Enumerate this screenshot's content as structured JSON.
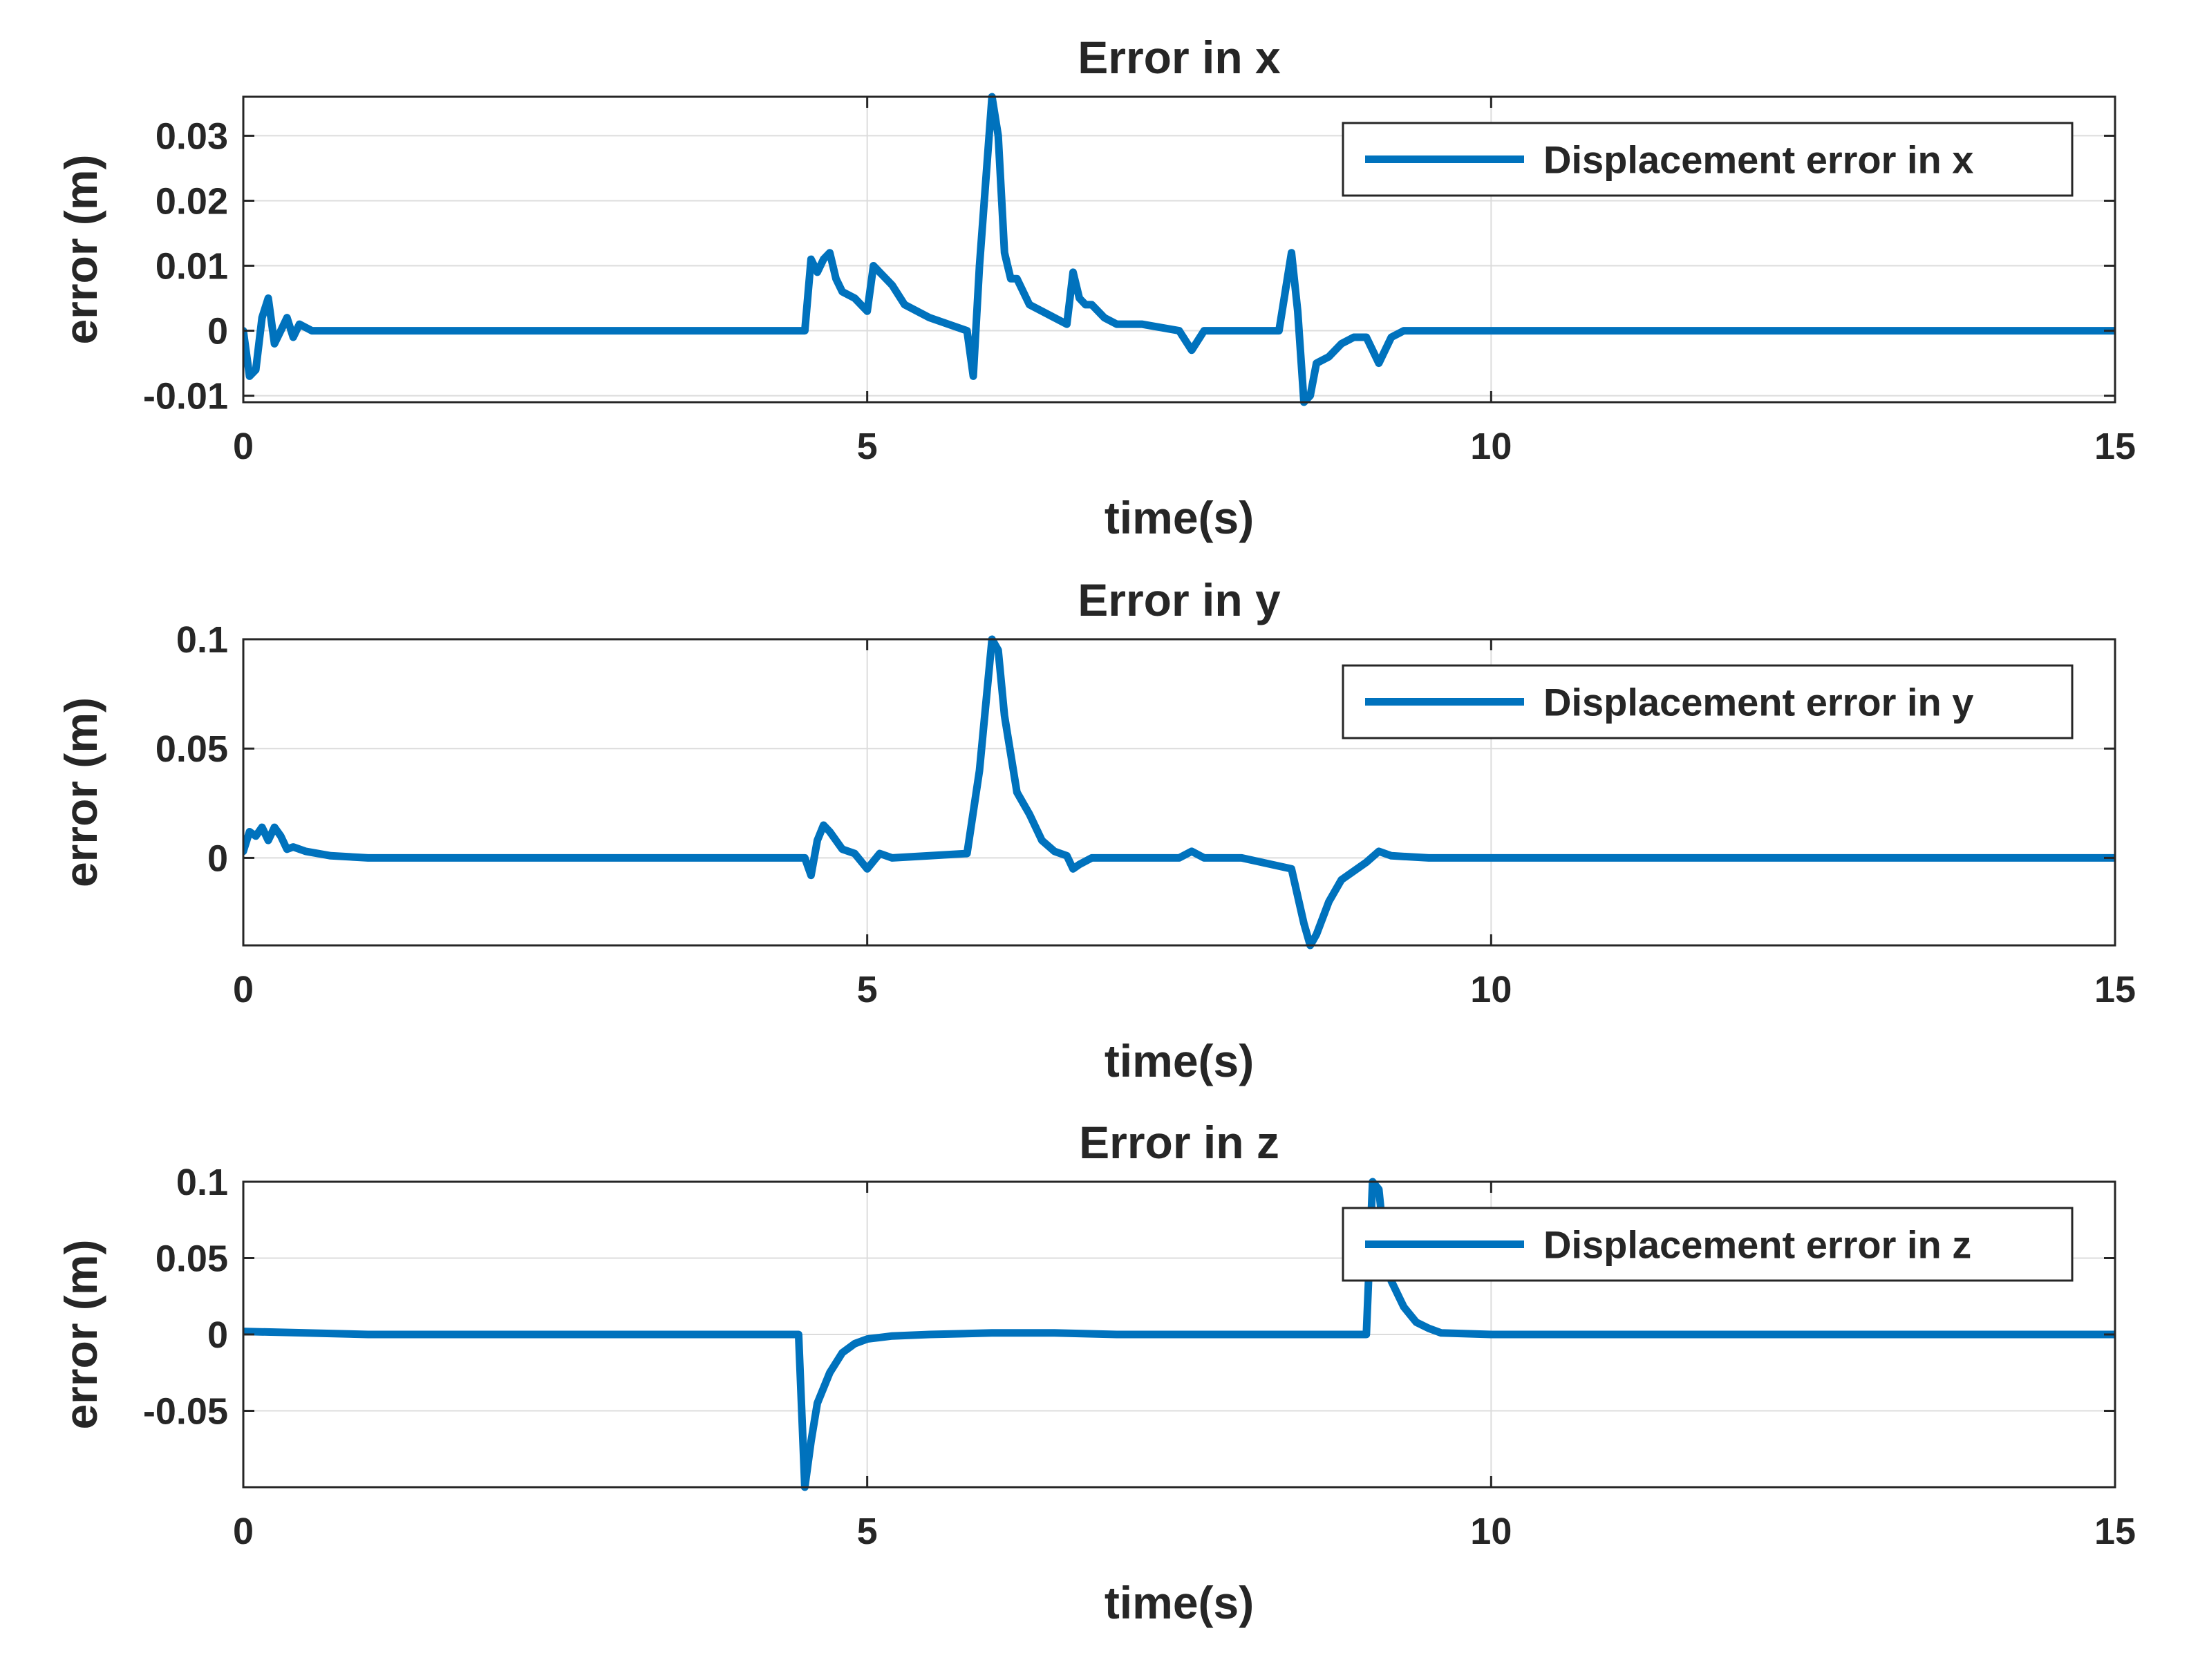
{
  "chart_data": [
    {
      "type": "line",
      "title": "Error in x",
      "xlabel": "time(s)",
      "ylabel": "error (m)",
      "xlim": [
        0,
        15
      ],
      "ylim": [
        -0.011,
        0.036
      ],
      "xticks": [
        0,
        5,
        10,
        15
      ],
      "xtick_labels": [
        "0",
        "5",
        "10",
        "15"
      ],
      "yticks": [
        -0.01,
        0,
        0.01,
        0.02,
        0.03
      ],
      "ytick_labels": [
        "-0.01",
        "0",
        "0.01",
        "0.02",
        "0.03"
      ],
      "grid": true,
      "legend_position": "top-right",
      "series": [
        {
          "name": "Displacement error in x",
          "color": "#0072BD",
          "x": [
            0,
            0.05,
            0.1,
            0.15,
            0.2,
            0.25,
            0.3,
            0.35,
            0.4,
            0.45,
            0.55,
            0.8,
            4.5,
            4.55,
            4.6,
            4.65,
            4.7,
            4.75,
            4.8,
            4.9,
            5.0,
            5.05,
            5.1,
            5.2,
            5.3,
            5.5,
            5.8,
            5.85,
            5.9,
            6.0,
            6.05,
            6.1,
            6.15,
            6.2,
            6.3,
            6.4,
            6.5,
            6.6,
            6.65,
            6.7,
            6.75,
            6.8,
            6.9,
            7.0,
            7.2,
            7.5,
            7.6,
            7.7,
            7.9,
            8.3,
            8.4,
            8.45,
            8.5,
            8.55,
            8.6,
            8.7,
            8.8,
            8.9,
            9.0,
            9.1,
            9.15,
            9.2,
            9.3,
            9.5,
            10,
            15
          ],
          "y": [
            0,
            -0.007,
            -0.006,
            0.002,
            0.005,
            -0.002,
            0,
            0.002,
            -0.001,
            0.001,
            0,
            0,
            0,
            0.011,
            0.009,
            0.011,
            0.012,
            0.008,
            0.006,
            0.005,
            0.003,
            0.01,
            0.009,
            0.007,
            0.004,
            0.002,
            0,
            -0.007,
            0.01,
            0.036,
            0.03,
            0.012,
            0.008,
            0.008,
            0.004,
            0.003,
            0.002,
            0.001,
            0.009,
            0.005,
            0.004,
            0.004,
            0.002,
            0.001,
            0.001,
            0,
            -0.003,
            0,
            0,
            0,
            0.012,
            0.003,
            -0.011,
            -0.01,
            -0.005,
            -0.004,
            -0.002,
            -0.001,
            -0.001,
            -0.005,
            -0.003,
            -0.001,
            0,
            0,
            0,
            0
          ]
        }
      ]
    },
    {
      "type": "line",
      "title": "Error in y",
      "xlabel": "time(s)",
      "ylabel": "error (m)",
      "xlim": [
        0,
        15
      ],
      "ylim": [
        -0.04,
        0.1
      ],
      "xticks": [
        0,
        5,
        10,
        15
      ],
      "xtick_labels": [
        "0",
        "5",
        "10",
        "15"
      ],
      "yticks": [
        0,
        0.05,
        0.1
      ],
      "ytick_labels": [
        "0",
        "0.05",
        "0.1"
      ],
      "grid": true,
      "legend_position": "top-right",
      "series": [
        {
          "name": "Displacement error in y",
          "color": "#0072BD",
          "x": [
            0,
            0.05,
            0.1,
            0.15,
            0.2,
            0.25,
            0.3,
            0.35,
            0.4,
            0.5,
            0.7,
            1.0,
            4.5,
            4.55,
            4.6,
            4.65,
            4.7,
            4.8,
            4.9,
            5.0,
            5.1,
            5.2,
            5.5,
            5.8,
            5.9,
            6.0,
            6.05,
            6.1,
            6.2,
            6.3,
            6.4,
            6.5,
            6.6,
            6.65,
            6.7,
            6.8,
            7.0,
            7.5,
            7.6,
            7.7,
            8.0,
            8.4,
            8.5,
            8.55,
            8.6,
            8.7,
            8.8,
            9.0,
            9.1,
            9.2,
            9.5,
            10,
            15
          ],
          "y": [
            0.003,
            0.012,
            0.01,
            0.014,
            0.008,
            0.014,
            0.01,
            0.004,
            0.005,
            0.003,
            0.001,
            0,
            0,
            -0.008,
            0.008,
            0.015,
            0.012,
            0.004,
            0.002,
            -0.005,
            0.002,
            0,
            0.001,
            0.002,
            0.04,
            0.1,
            0.095,
            0.065,
            0.03,
            0.02,
            0.008,
            0.003,
            0.001,
            -0.005,
            -0.003,
            0,
            0,
            0,
            0.003,
            0,
            0,
            -0.005,
            -0.03,
            -0.04,
            -0.035,
            -0.02,
            -0.01,
            -0.002,
            0.003,
            0.001,
            0,
            0,
            0
          ]
        }
      ]
    },
    {
      "type": "line",
      "title": "Error in z",
      "xlabel": "time(s)",
      "ylabel": "error (m)",
      "xlim": [
        0,
        15
      ],
      "ylim": [
        -0.1,
        0.1
      ],
      "xticks": [
        0,
        5,
        10,
        15
      ],
      "xtick_labels": [
        "0",
        "5",
        "10",
        "15"
      ],
      "yticks": [
        -0.05,
        0,
        0.05,
        0.1
      ],
      "ytick_labels": [
        "-0.05",
        "0",
        "0.05",
        "0.1"
      ],
      "grid": true,
      "legend_position": "top-right",
      "series": [
        {
          "name": "Displacement error in z",
          "color": "#0072BD",
          "x": [
            0,
            0.5,
            1,
            4.45,
            4.5,
            4.55,
            4.6,
            4.7,
            4.8,
            4.9,
            5.0,
            5.2,
            5.5,
            6.0,
            6.5,
            7.0,
            8.0,
            9.0,
            9.05,
            9.1,
            9.15,
            9.2,
            9.3,
            9.4,
            9.5,
            9.6,
            10,
            15
          ],
          "y": [
            0.002,
            0.001,
            0,
            0,
            -0.1,
            -0.07,
            -0.045,
            -0.025,
            -0.012,
            -0.006,
            -0.003,
            -0.001,
            0,
            0.001,
            0.001,
            0,
            0,
            0,
            0.1,
            0.095,
            0.055,
            0.035,
            0.018,
            0.008,
            0.004,
            0.001,
            0,
            0
          ]
        }
      ]
    }
  ]
}
